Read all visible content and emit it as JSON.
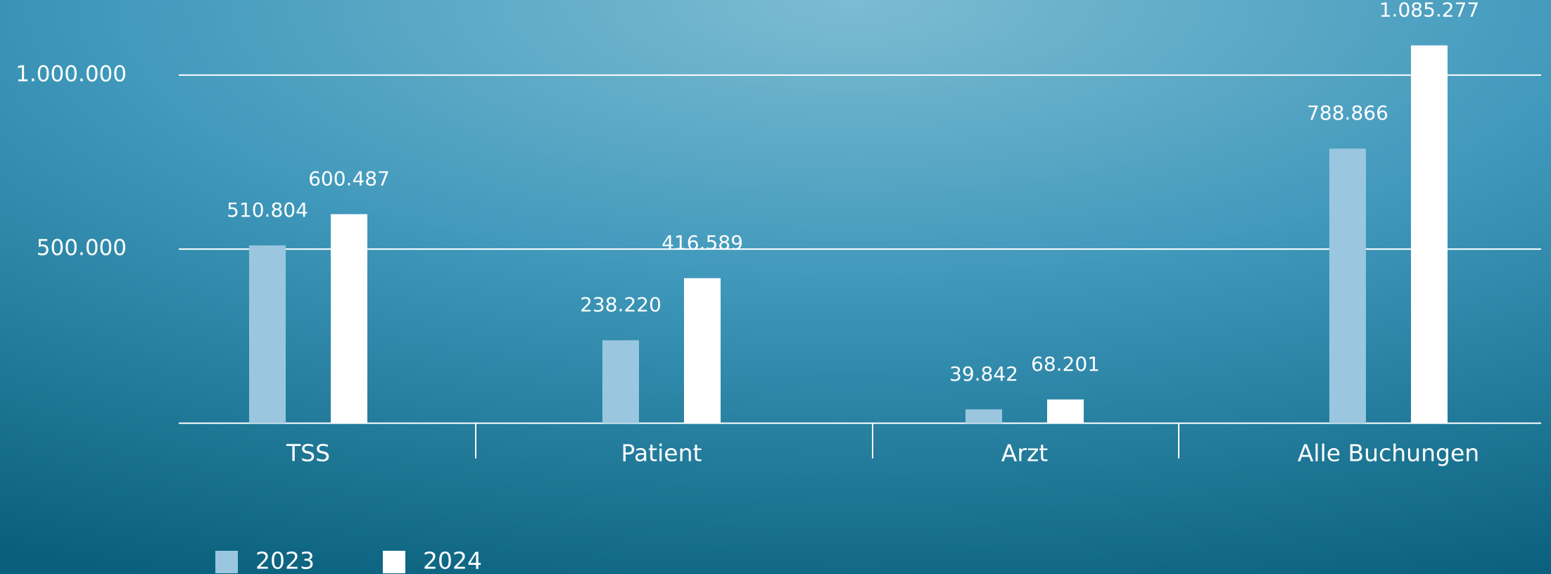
{
  "chart_data": {
    "type": "bar",
    "categories": [
      "TSS",
      "Patient",
      "Arzt",
      "Alle Buchungen"
    ],
    "series": [
      {
        "name": "2023",
        "color": "#9ac6df",
        "values": [
          510804,
          238220,
          39842,
          788866
        ],
        "value_labels": [
          "510.804",
          "238.220",
          "39.842",
          "788.866"
        ]
      },
      {
        "name": "2024",
        "color": "#ffffff",
        "values": [
          600487,
          416589,
          68201,
          1085277
        ],
        "value_labels": [
          "600.487",
          "416.589",
          "68.201",
          "1.085.277"
        ]
      }
    ],
    "ylim": [
      0,
      1200000
    ],
    "yticks": [
      {
        "value": 500000,
        "label": "500.000"
      },
      {
        "value": 1000000,
        "label": "1.000.000"
      }
    ],
    "grid": true,
    "legend": "bottom-left"
  }
}
